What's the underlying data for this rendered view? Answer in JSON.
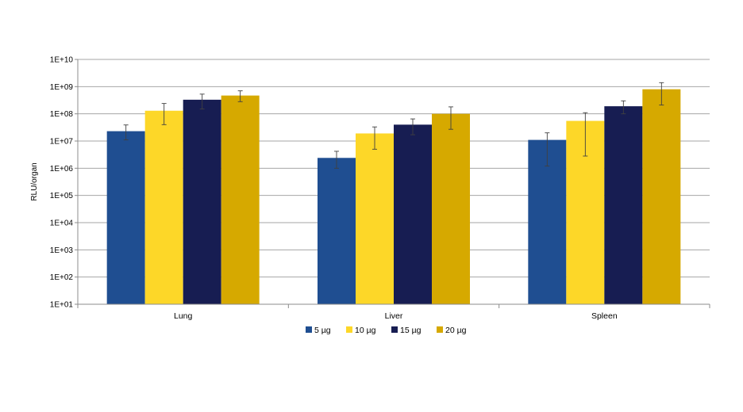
{
  "chart_data": {
    "type": "bar",
    "scale": "log10",
    "ylabel": "RLU/organ",
    "ylim": [
      10,
      10000000000
    ],
    "y_ticks": [
      "1E+01",
      "1E+02",
      "1E+03",
      "1E+04",
      "1E+05",
      "1E+06",
      "1E+07",
      "1E+08",
      "1E+09",
      "1E+10"
    ],
    "grid": "horizontal",
    "legend": "bottom",
    "categories": [
      "Lung",
      "Liver",
      "Spleen"
    ],
    "series": [
      {
        "name": "5 µg",
        "color": "#1f4e91",
        "values": [
          23000000,
          2400000,
          11000000
        ],
        "err_low": [
          11000000,
          1000000,
          1200000
        ],
        "err_high": [
          39000000,
          4200000,
          20000000
        ]
      },
      {
        "name": "10 µg",
        "color": "#fdd728",
        "values": [
          130000000,
          19000000,
          55000000
        ],
        "err_low": [
          40000000,
          5000000,
          2800000
        ],
        "err_high": [
          240000000,
          33000000,
          110000000
        ]
      },
      {
        "name": "15 µg",
        "color": "#171d52",
        "values": [
          330000000,
          40000000,
          190000000
        ],
        "err_low": [
          150000000,
          17000000,
          100000000
        ],
        "err_high": [
          530000000,
          65000000,
          300000000
        ]
      },
      {
        "name": "20 µg",
        "color": "#d6a900",
        "values": [
          470000000,
          100000000,
          800000000
        ],
        "err_low": [
          280000000,
          27000000,
          210000000
        ],
        "err_high": [
          700000000,
          180000000,
          1400000000
        ]
      }
    ]
  }
}
